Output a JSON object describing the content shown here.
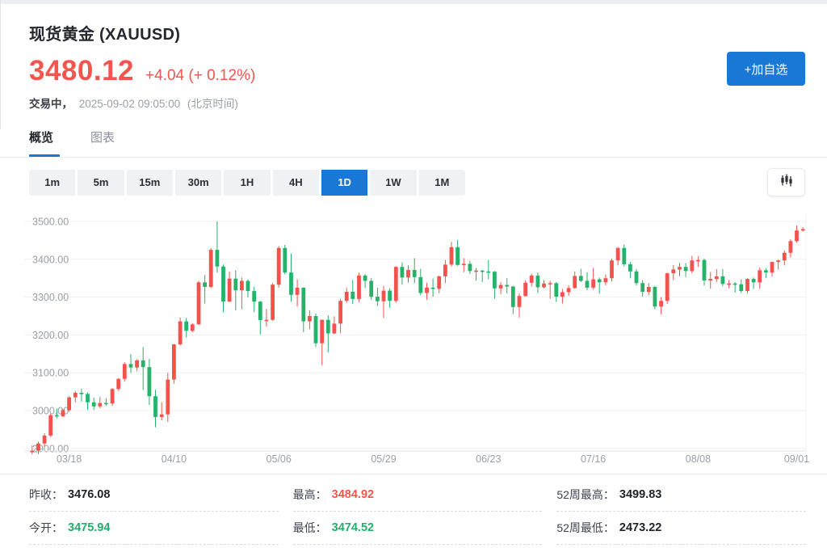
{
  "header": {
    "title": "现货黄金 (XAUUSD)",
    "price": "3480.12",
    "change": "+4.04 (+ 0.12%)",
    "status_label": "交易中，",
    "status_time": "2025-09-02 09:05:00",
    "status_tz": "(北京时间)",
    "add_watchlist_label": "+加自选",
    "price_color": "#f3544e",
    "accent_blue": "#1978d6"
  },
  "tabs": [
    {
      "label": "概览",
      "active": true
    },
    {
      "label": "图表",
      "active": false
    }
  ],
  "toolbar": {
    "ranges": [
      "1m",
      "5m",
      "15m",
      "30m",
      "1H",
      "4H",
      "1D",
      "1W",
      "1M"
    ],
    "selected": "1D",
    "chart_type_icon": "candlestick-icon"
  },
  "chart_data": {
    "type": "candlestick",
    "symbol": "XAUUSD",
    "interval": "1D",
    "up_color": "#f4534d",
    "down_color": "#27b26b",
    "grid": true,
    "ylim": [
      2880,
      3510
    ],
    "y_ticks": [
      "3500.00",
      "3400.00",
      "3300.00",
      "3200.00",
      "3100.00",
      "3000.00",
      "2900.00"
    ],
    "x_labels": [
      {
        "label": "03/18",
        "index": 6
      },
      {
        "label": "04/10",
        "index": 23
      },
      {
        "label": "05/06",
        "index": 40
      },
      {
        "label": "05/29",
        "index": 57
      },
      {
        "label": "06/23",
        "index": 74
      },
      {
        "label": "07/16",
        "index": 91
      },
      {
        "label": "08/08",
        "index": 108
      },
      {
        "label": "09/01",
        "index": 124
      }
    ],
    "candles_format": [
      "open",
      "high",
      "low",
      "close"
    ],
    "candles": [
      [
        2890,
        2908,
        2884,
        2894
      ],
      [
        2894,
        2918,
        2885,
        2913
      ],
      [
        2913,
        2940,
        2905,
        2934
      ],
      [
        2934,
        2992,
        2930,
        2988
      ],
      [
        2988,
        3006,
        2980,
        2985
      ],
      [
        2985,
        3005,
        2982,
        3001
      ],
      [
        3001,
        3038,
        2997,
        3035
      ],
      [
        3035,
        3052,
        3022,
        3047
      ],
      [
        3047,
        3058,
        3024,
        3044
      ],
      [
        3044,
        3048,
        3002,
        3022
      ],
      [
        3022,
        3034,
        3002,
        3011
      ],
      [
        3011,
        3036,
        3006,
        3020
      ],
      [
        3020,
        3033,
        3012,
        3019
      ],
      [
        3019,
        3060,
        3013,
        3057
      ],
      [
        3057,
        3086,
        3052,
        3084
      ],
      [
        3084,
        3128,
        3077,
        3123
      ],
      [
        3123,
        3149,
        3100,
        3114
      ],
      [
        3114,
        3136,
        3104,
        3133
      ],
      [
        3133,
        3168,
        3054,
        3115
      ],
      [
        3115,
        3137,
        3015,
        3038
      ],
      [
        3038,
        3055,
        2956,
        2983
      ],
      [
        2983,
        3022,
        2974,
        2990
      ],
      [
        2990,
        3100,
        2970,
        3082
      ],
      [
        3082,
        3176,
        3071,
        3175
      ],
      [
        3175,
        3246,
        3172,
        3236
      ],
      [
        3236,
        3245,
        3193,
        3211
      ],
      [
        3211,
        3231,
        3207,
        3228
      ],
      [
        3228,
        3343,
        3226,
        3339
      ],
      [
        3339,
        3358,
        3283,
        3327
      ],
      [
        3327,
        3430,
        3324,
        3425
      ],
      [
        3425,
        3500,
        3365,
        3381
      ],
      [
        3381,
        3386,
        3260,
        3288
      ],
      [
        3288,
        3367,
        3287,
        3349
      ],
      [
        3349,
        3371,
        3265,
        3318
      ],
      [
        3318,
        3352,
        3268,
        3343
      ],
      [
        3343,
        3347,
        3299,
        3316
      ],
      [
        3316,
        3327,
        3260,
        3288
      ],
      [
        3288,
        3290,
        3201,
        3239
      ],
      [
        3239,
        3269,
        3222,
        3240
      ],
      [
        3240,
        3337,
        3237,
        3333
      ],
      [
        3333,
        3435,
        3325,
        3430
      ],
      [
        3430,
        3438,
        3360,
        3365
      ],
      [
        3365,
        3415,
        3288,
        3306
      ],
      [
        3306,
        3347,
        3275,
        3325
      ],
      [
        3325,
        3326,
        3207,
        3236
      ],
      [
        3236,
        3265,
        3215,
        3250
      ],
      [
        3250,
        3257,
        3168,
        3178
      ],
      [
        3178,
        3241,
        3120,
        3240
      ],
      [
        3240,
        3252,
        3154,
        3204
      ],
      [
        3204,
        3249,
        3203,
        3230
      ],
      [
        3230,
        3295,
        3204,
        3290
      ],
      [
        3290,
        3325,
        3285,
        3314
      ],
      [
        3314,
        3345,
        3282,
        3295
      ],
      [
        3295,
        3365,
        3287,
        3357
      ],
      [
        3357,
        3361,
        3324,
        3343
      ],
      [
        3343,
        3350,
        3293,
        3301
      ],
      [
        3301,
        3325,
        3277,
        3289
      ],
      [
        3289,
        3330,
        3245,
        3317
      ],
      [
        3317,
        3323,
        3272,
        3290
      ],
      [
        3290,
        3382,
        3285,
        3380
      ],
      [
        3380,
        3392,
        3333,
        3352
      ],
      [
        3352,
        3384,
        3338,
        3372
      ],
      [
        3372,
        3403,
        3337,
        3353
      ],
      [
        3353,
        3375,
        3305,
        3311
      ],
      [
        3311,
        3338,
        3293,
        3325
      ],
      [
        3325,
        3349,
        3301,
        3322
      ],
      [
        3322,
        3357,
        3310,
        3355
      ],
      [
        3355,
        3398,
        3337,
        3386
      ],
      [
        3386,
        3446,
        3381,
        3432
      ],
      [
        3432,
        3451,
        3383,
        3385
      ],
      [
        3385,
        3403,
        3366,
        3388
      ],
      [
        3388,
        3396,
        3361,
        3369
      ],
      [
        3369,
        3377,
        3344,
        3370
      ],
      [
        3370,
        3372,
        3340,
        3368
      ],
      [
        3368,
        3398,
        3347,
        3367
      ],
      [
        3367,
        3369,
        3295,
        3323
      ],
      [
        3323,
        3340,
        3308,
        3332
      ],
      [
        3332,
        3350,
        3310,
        3328
      ],
      [
        3328,
        3330,
        3255,
        3274
      ],
      [
        3274,
        3310,
        3246,
        3303
      ],
      [
        3303,
        3344,
        3301,
        3338
      ],
      [
        3338,
        3362,
        3328,
        3357
      ],
      [
        3357,
        3365,
        3311,
        3326
      ],
      [
        3326,
        3345,
        3323,
        3336
      ],
      [
        3336,
        3343,
        3296,
        3337
      ],
      [
        3337,
        3340,
        3287,
        3301
      ],
      [
        3301,
        3322,
        3283,
        3313
      ],
      [
        3313,
        3331,
        3303,
        3324
      ],
      [
        3324,
        3368,
        3322,
        3356
      ],
      [
        3356,
        3375,
        3340,
        3343
      ],
      [
        3343,
        3366,
        3319,
        3325
      ],
      [
        3325,
        3377,
        3320,
        3347
      ],
      [
        3347,
        3352,
        3309,
        3339
      ],
      [
        3339,
        3360,
        3331,
        3350
      ],
      [
        3350,
        3402,
        3341,
        3397
      ],
      [
        3397,
        3433,
        3384,
        3430
      ],
      [
        3430,
        3439,
        3381,
        3387
      ],
      [
        3387,
        3393,
        3350,
        3368
      ],
      [
        3368,
        3374,
        3331,
        3337
      ],
      [
        3337,
        3345,
        3301,
        3314
      ],
      [
        3314,
        3337,
        3305,
        3327
      ],
      [
        3327,
        3330,
        3268,
        3275
      ],
      [
        3275,
        3300,
        3254,
        3290
      ],
      [
        3290,
        3365,
        3282,
        3363
      ],
      [
        3363,
        3385,
        3345,
        3373
      ],
      [
        3373,
        3390,
        3355,
        3380
      ],
      [
        3380,
        3390,
        3353,
        3369
      ],
      [
        3369,
        3409,
        3363,
        3397
      ],
      [
        3397,
        3408,
        3380,
        3398
      ],
      [
        3398,
        3402,
        3331,
        3344
      ],
      [
        3344,
        3366,
        3322,
        3348
      ],
      [
        3348,
        3374,
        3340,
        3355
      ],
      [
        3355,
        3374,
        3329,
        3335
      ],
      [
        3335,
        3345,
        3323,
        3336
      ],
      [
        3336,
        3340,
        3312,
        3334
      ],
      [
        3334,
        3347,
        3311,
        3316
      ],
      [
        3316,
        3350,
        3310,
        3348
      ],
      [
        3348,
        3352,
        3322,
        3339
      ],
      [
        3339,
        3378,
        3322,
        3371
      ],
      [
        3371,
        3376,
        3350,
        3365
      ],
      [
        3365,
        3394,
        3355,
        3393
      ],
      [
        3393,
        3399,
        3373,
        3397
      ],
      [
        3397,
        3423,
        3384,
        3417
      ],
      [
        3417,
        3453,
        3405,
        3448
      ],
      [
        3448,
        3489,
        3444,
        3476
      ],
      [
        3476,
        3485,
        3474,
        3480
      ]
    ]
  },
  "stats": {
    "cells": [
      {
        "key": "prev-close",
        "label": "昨收：",
        "value": "3476.08",
        "color": "#1f232b"
      },
      {
        "key": "high",
        "label": "最高：",
        "value": "3484.92",
        "color": "#f3544e"
      },
      {
        "key": "52w-high",
        "label": "52周最高：",
        "value": "3499.83",
        "color": "#1f232b"
      },
      {
        "key": "open",
        "label": "今开：",
        "value": "3475.94",
        "color": "#23af6b"
      },
      {
        "key": "low",
        "label": "最低：",
        "value": "3474.52",
        "color": "#23af6b"
      },
      {
        "key": "52w-low",
        "label": "52周最低：",
        "value": "2473.22",
        "color": "#1f232b"
      }
    ]
  }
}
